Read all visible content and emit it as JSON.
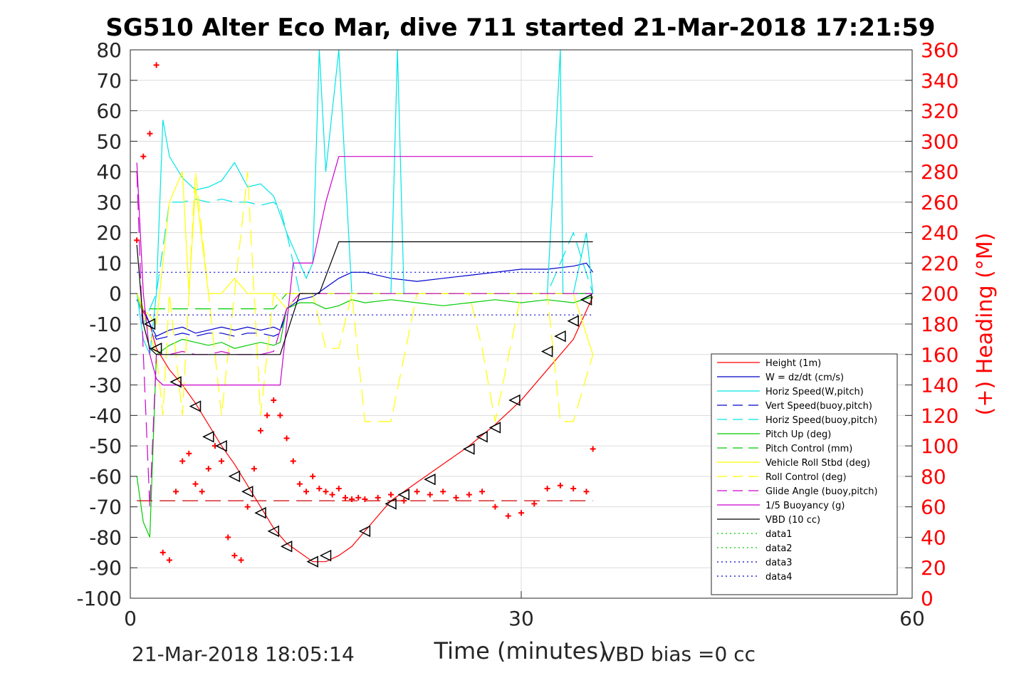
{
  "chart_data": {
    "type": "line",
    "title": "SG510 Alter Eco Mar, dive 711 started 21-Mar-2018 17:21:59",
    "xlabel": "Time (minutes)",
    "ylabel": "",
    "y2label": "(+) Heading (°M)",
    "footer_left": "21-Mar-2018 18:05:14",
    "footer_right": "VBD bias =0 cc",
    "xlim": [
      0,
      60
    ],
    "ylim": [
      -100,
      80
    ],
    "y2lim": [
      0,
      360
    ],
    "xticks": [
      0,
      30,
      60
    ],
    "yticks": [
      80,
      70,
      60,
      50,
      40,
      30,
      20,
      10,
      0,
      -10,
      -20,
      -30,
      -40,
      -50,
      -60,
      -70,
      -80,
      -90,
      -100
    ],
    "y2ticks": [
      360,
      340,
      320,
      300,
      280,
      260,
      240,
      220,
      200,
      180,
      160,
      140,
      120,
      100,
      80,
      60,
      40,
      20,
      0
    ],
    "grid": true,
    "legend_position": "lower-right",
    "series": [
      {
        "name": "Height (1m)",
        "color": "#ff0000",
        "style": "solid",
        "x": [
          0.5,
          1.5,
          2,
          3,
          4,
          5,
          6,
          7,
          8,
          9,
          10,
          11,
          12,
          13,
          14,
          15,
          16,
          17,
          18,
          19,
          20,
          22,
          24,
          26,
          28,
          30,
          32,
          34,
          35.5
        ],
        "y": [
          -2,
          -10,
          -18,
          -25,
          -30,
          -36,
          -43,
          -50,
          -56,
          -63,
          -70,
          -77,
          -82,
          -85,
          -88,
          -88,
          -86,
          -83,
          -78,
          -73,
          -68,
          -62,
          -56,
          -50,
          -43,
          -35,
          -25,
          -15,
          -1
        ]
      },
      {
        "name": "W = dz/dt (cm/s)",
        "color": "#0000cc",
        "style": "solid",
        "x": [
          0.5,
          1,
          1.5,
          2,
          3,
          4,
          5,
          6,
          7,
          8,
          9,
          10,
          11,
          11.5,
          12,
          13,
          14,
          15,
          16,
          17,
          18,
          20,
          22,
          24,
          26,
          28,
          30,
          32,
          34,
          35,
          35.5
        ],
        "y": [
          -2,
          -5,
          -10,
          -14,
          -12,
          -11,
          -13,
          -12,
          -11,
          -12,
          -11,
          -12,
          -11,
          -12,
          -5,
          -2,
          -1,
          2,
          5,
          7,
          7,
          5,
          4,
          5,
          6,
          7,
          8,
          8,
          9,
          10,
          7
        ]
      },
      {
        "name": "Horiz Speed(W,pitch)",
        "color": "#00e5e5",
        "style": "solid",
        "x": [
          0.5,
          1,
          1.5,
          2,
          2.5,
          3,
          4,
          5,
          6,
          7,
          8,
          9,
          10,
          11,
          12,
          13,
          13.5,
          14,
          14.5,
          15,
          16,
          17,
          18,
          20,
          20.5,
          21,
          22,
          24,
          26,
          28,
          30,
          32,
          33,
          33.2,
          34,
          35,
          35.5
        ],
        "y": [
          0,
          -15,
          -20,
          0,
          57,
          45,
          38,
          34,
          35,
          37,
          43,
          35,
          36,
          32,
          20,
          10,
          5,
          10,
          80,
          40,
          80,
          0,
          0,
          0,
          80,
          0,
          0,
          0,
          0,
          0,
          0,
          0,
          80,
          0,
          0,
          20,
          0
        ]
      },
      {
        "name": "Vert Speed(buoy,pitch)",
        "color": "#0000cc",
        "style": "dashed",
        "x": [
          0.5,
          1,
          2,
          3,
          4,
          5,
          6,
          7,
          8,
          9,
          10,
          11,
          11.5,
          12,
          13,
          14,
          16,
          18,
          20,
          22,
          24,
          26,
          28,
          30,
          32,
          34,
          35.5
        ],
        "y": [
          0,
          -5,
          -15,
          -14,
          -13,
          -14,
          -13,
          -13,
          -14,
          -13,
          -13,
          -14,
          -13,
          -5,
          0,
          0,
          0,
          0,
          0,
          0,
          0,
          0,
          0,
          0,
          0,
          0,
          0
        ]
      },
      {
        "name": "Horiz Speed(buoy,pitch)",
        "color": "#00e5e5",
        "style": "dashed",
        "x": [
          0.5,
          1,
          2,
          3,
          4,
          5,
          6,
          7,
          8,
          9,
          10,
          11,
          11.5,
          12,
          12.5,
          13,
          14,
          16,
          18,
          20,
          22,
          24,
          26,
          28,
          30,
          32,
          34,
          35.5
        ],
        "y": [
          0,
          -10,
          0,
          30,
          30,
          31,
          30,
          31,
          30,
          30,
          29,
          30,
          28,
          20,
          10,
          0,
          0,
          0,
          0,
          0,
          0,
          0,
          0,
          0,
          0,
          0,
          20,
          0
        ]
      },
      {
        "name": "Pitch Up (deg)",
        "color": "#00cc00",
        "style": "solid",
        "x": [
          0.5,
          1,
          1.5,
          2,
          3,
          4,
          5,
          6,
          7,
          8,
          9,
          10,
          11,
          11.5,
          12,
          13,
          14,
          15,
          16,
          17,
          18,
          20,
          22,
          24,
          26,
          28,
          30,
          32,
          34,
          35.5
        ],
        "y": [
          -60,
          -75,
          -80,
          -20,
          -17,
          -15,
          -16,
          -17,
          -16,
          -18,
          -17,
          -16,
          -17,
          -16,
          -5,
          -3,
          -3,
          -5,
          -4,
          -2,
          -3,
          -2,
          -3,
          -4,
          -3,
          -2,
          -3,
          -2,
          -3,
          -1
        ]
      },
      {
        "name": "Pitch Control (mm)",
        "color": "#00cc00",
        "style": "dashed",
        "x": [
          0.5,
          1,
          2,
          3,
          4,
          5,
          6,
          7,
          8,
          9,
          10,
          11,
          12,
          13,
          14,
          16,
          18,
          20,
          22,
          24,
          26,
          28,
          30,
          32,
          34,
          35.5
        ],
        "y": [
          0,
          -5,
          -5,
          -5,
          -5,
          -5,
          -5,
          -5,
          -5,
          -5,
          -5,
          -5,
          0,
          0,
          0,
          0,
          0,
          0,
          0,
          0,
          0,
          0,
          0,
          0,
          0,
          0
        ]
      },
      {
        "name": "Vehicle Roll Stbd (deg)",
        "color": "#ffff00",
        "style": "solid",
        "x": [
          0.5,
          1,
          2,
          3,
          4,
          4.5,
          5,
          6,
          7,
          8,
          9,
          10,
          11,
          12,
          13,
          14,
          16,
          18,
          20,
          22,
          24,
          26,
          28,
          30,
          32,
          34,
          35.5
        ],
        "y": [
          0,
          -5,
          -10,
          30,
          40,
          0,
          35,
          0,
          0,
          5,
          0,
          0,
          0,
          -5,
          0,
          0,
          0,
          0,
          0,
          0,
          0,
          0,
          0,
          0,
          0,
          0,
          -20
        ]
      },
      {
        "name": "Roll Control (deg)",
        "color": "#ffff00",
        "style": "dashed",
        "x": [
          0.5,
          2,
          2.5,
          3,
          4,
          5,
          6,
          7,
          8,
          9,
          10,
          11,
          12,
          13,
          14,
          15,
          16,
          17,
          18,
          20,
          22,
          24,
          26,
          27,
          28,
          30,
          32,
          33,
          34,
          35.5
        ],
        "y": [
          0,
          -20,
          -40,
          0,
          -40,
          40,
          0,
          -40,
          0,
          40,
          -40,
          0,
          0,
          0,
          0,
          -18,
          -18,
          0,
          -42,
          -42,
          0,
          0,
          0,
          -18,
          -42,
          0,
          0,
          -42,
          -42,
          -20
        ]
      },
      {
        "name": "Glide Angle (buoy,pitch)",
        "color": "#cc00cc",
        "style": "dashed",
        "x": [
          0.5,
          1,
          1.5,
          2,
          3,
          4,
          5,
          6,
          7,
          8,
          9,
          10,
          11,
          12,
          13,
          14,
          16,
          18,
          20,
          22,
          24,
          26,
          28,
          30,
          32,
          34,
          35.5
        ],
        "y": [
          40,
          -20,
          -70,
          -20,
          -20,
          -19,
          -20,
          -20,
          -19,
          -20,
          -20,
          -20,
          -19,
          -5,
          0,
          0,
          0,
          0,
          0,
          0,
          0,
          0,
          0,
          0,
          0,
          0,
          0
        ]
      },
      {
        "name": "1/5 Buoyancy (g)",
        "color": "#cc00cc",
        "style": "solid",
        "x": [
          0.5,
          1,
          1.5,
          2,
          2.5,
          11.5,
          12,
          12.5,
          13.5,
          14,
          15,
          16,
          35.5
        ],
        "y": [
          43,
          0,
          -20,
          -28,
          -30,
          -30,
          -10,
          10,
          10,
          10,
          30,
          45,
          45
        ]
      },
      {
        "name": "VBD (10 cc)",
        "color": "#000000",
        "style": "solid",
        "x": [
          0.5,
          1,
          1.5,
          2,
          11.5,
          13,
          14.5,
          16,
          35.5
        ],
        "y": [
          16,
          -10,
          -18,
          -20,
          -20,
          0,
          0,
          17,
          17
        ]
      },
      {
        "name": "data1",
        "color": "#00cc00",
        "style": "dotted",
        "x": [],
        "y": []
      },
      {
        "name": "data2",
        "color": "#00cc00",
        "style": "dotted",
        "x": [],
        "y": []
      },
      {
        "name": "data3",
        "color": "#0000cc",
        "style": "dotted",
        "x": [
          0.5,
          35.5
        ],
        "y": [
          7,
          7
        ]
      },
      {
        "name": "data4",
        "color": "#0000cc",
        "style": "dotted",
        "x": [
          0.5,
          35.5
        ],
        "y": [
          -7,
          -7
        ]
      }
    ],
    "heading_points": {
      "axis": "right",
      "color": "#ff0000",
      "marker": "+",
      "x": [
        0.5,
        1,
        1.5,
        2,
        2.5,
        3,
        3.5,
        4,
        4.5,
        5,
        5.5,
        6,
        6.5,
        7,
        7.5,
        8,
        8.5,
        9,
        9.5,
        10,
        10.5,
        11,
        11.5,
        12,
        12.5,
        13,
        13.5,
        14,
        14.5,
        15,
        15.5,
        16,
        16.5,
        17,
        17.5,
        18,
        19,
        20,
        21,
        22,
        23,
        24,
        25,
        26,
        27,
        28,
        29,
        30,
        31,
        32,
        33,
        34,
        35,
        35.5
      ],
      "y": [
        235,
        290,
        305,
        350,
        30,
        25,
        70,
        90,
        95,
        75,
        70,
        85,
        100,
        90,
        40,
        28,
        25,
        60,
        85,
        110,
        120,
        130,
        120,
        105,
        90,
        75,
        70,
        80,
        72,
        70,
        68,
        72,
        66,
        65,
        66,
        65,
        66,
        68,
        64,
        70,
        68,
        70,
        66,
        68,
        70,
        60,
        54,
        56,
        62,
        72,
        74,
        72,
        70,
        98
      ]
    },
    "heading_mean": {
      "axis": "right",
      "value": 64,
      "color": "#cc0000",
      "style": "dashed"
    },
    "triangle_markers": {
      "x": [
        1.5,
        2,
        3.5,
        5,
        6,
        7,
        8,
        9,
        10,
        11,
        12,
        14,
        15,
        18,
        20,
        21,
        23,
        26,
        27,
        28,
        29.5,
        32,
        33,
        34,
        35
      ],
      "y": [
        -10,
        -18,
        -29,
        -37,
        -47,
        -50,
        -60,
        -65,
        -72,
        -78,
        -83,
        -88,
        -86,
        -78,
        -69,
        -66,
        -61,
        -51,
        -47,
        -44,
        -35,
        -19,
        -14,
        -9,
        -2
      ]
    }
  }
}
